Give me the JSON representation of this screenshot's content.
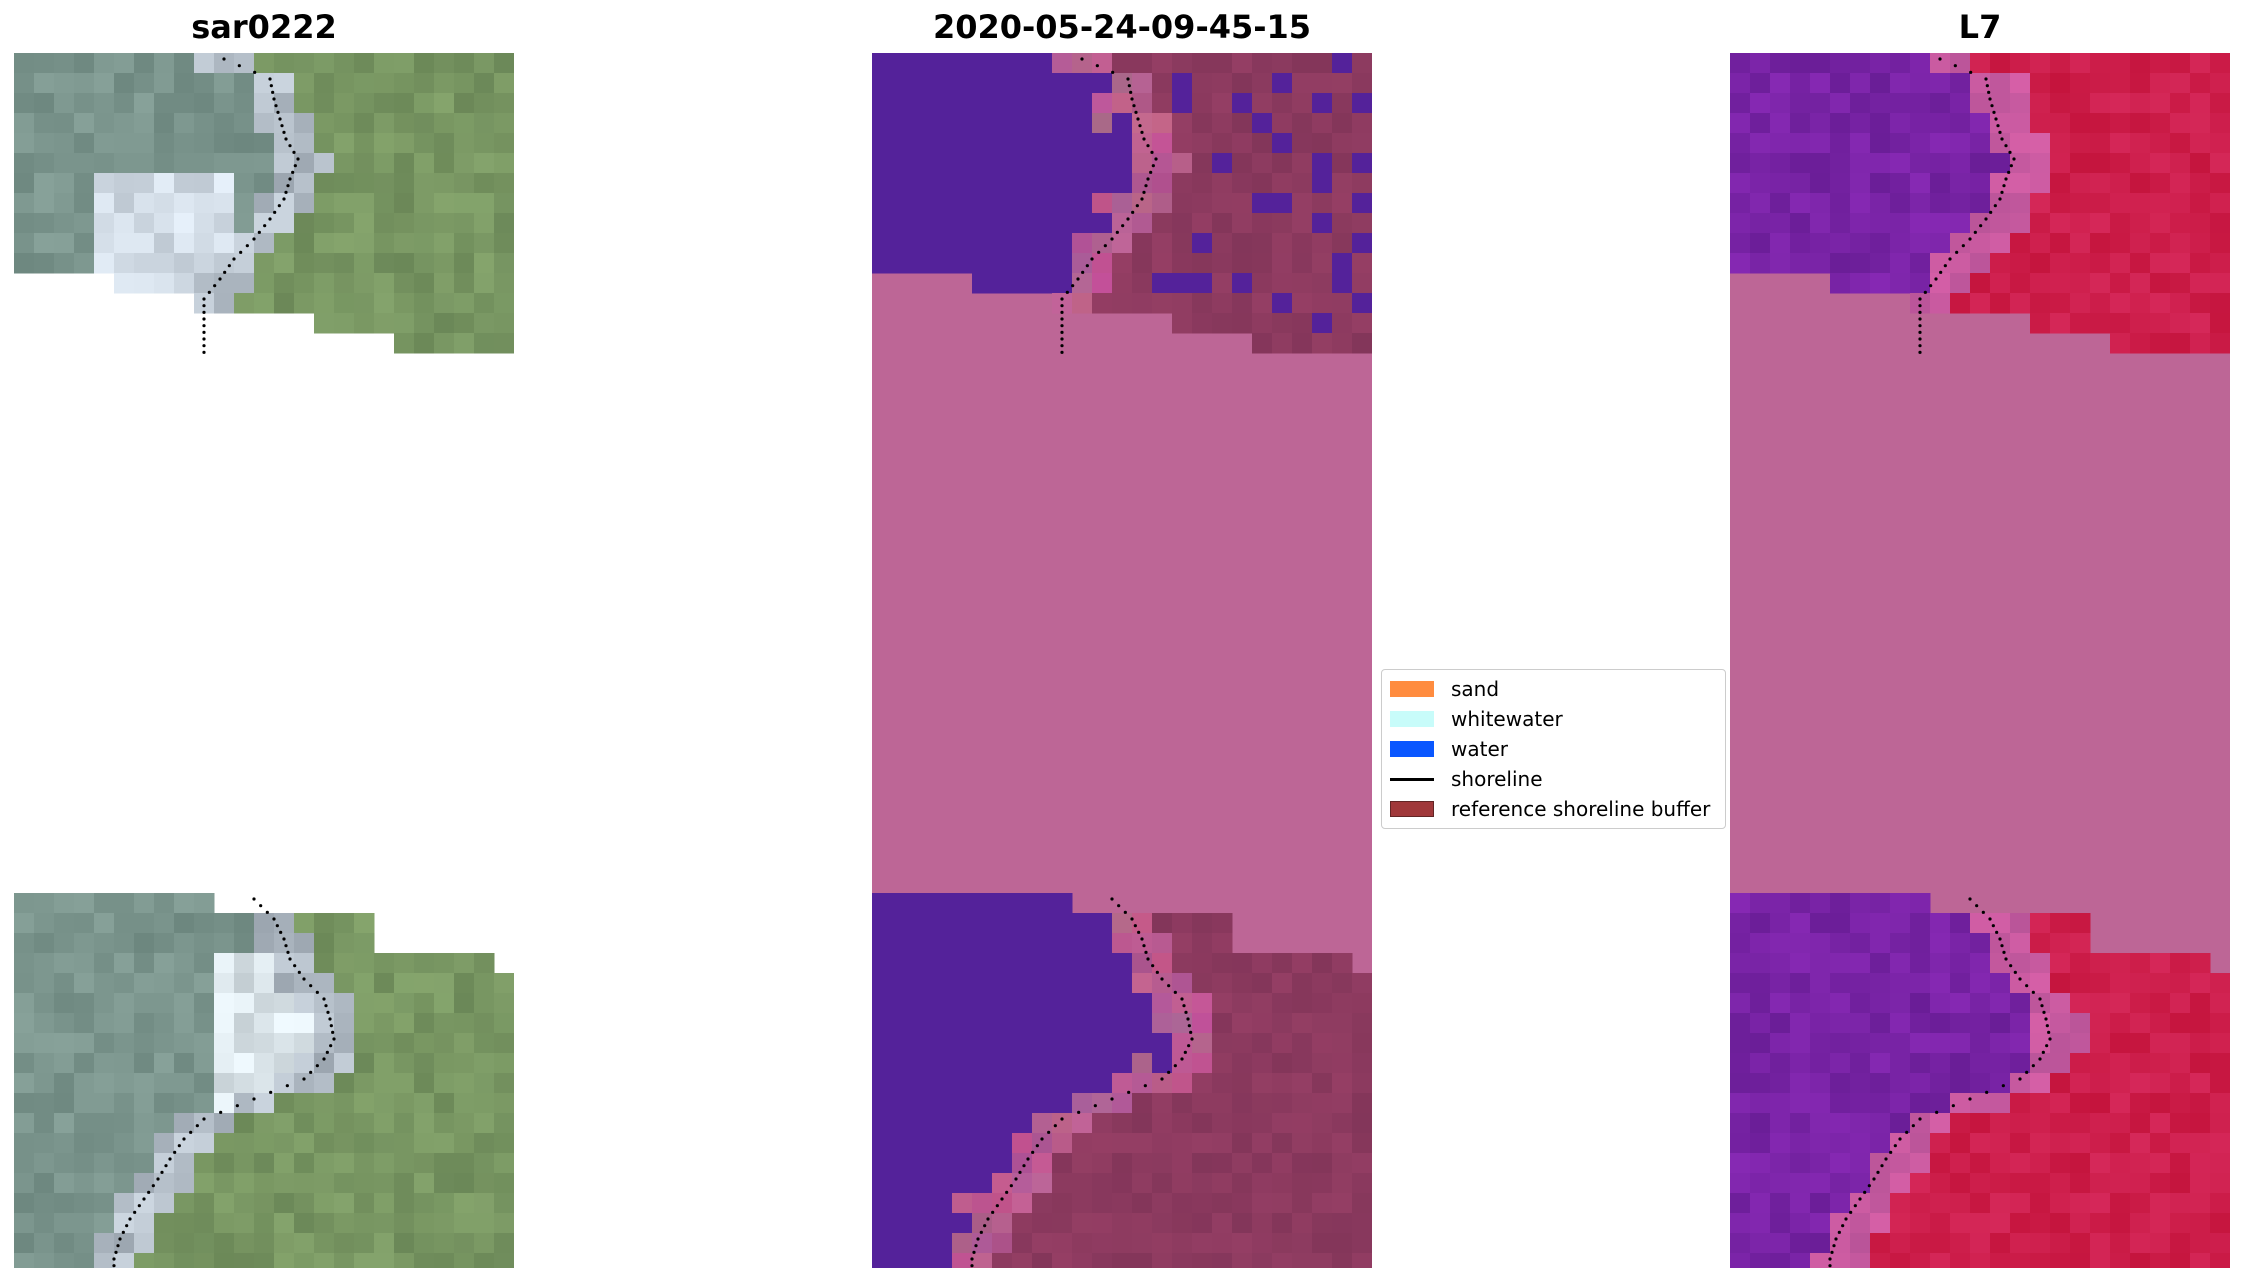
{
  "panels": [
    {
      "title": "sar0222",
      "kind": "rgb"
    },
    {
      "title": "2020-05-24-09-45-15",
      "kind": "classified"
    },
    {
      "title": "L7",
      "kind": "index"
    }
  ],
  "legend": {
    "items": [
      {
        "label": "sand",
        "color": "#ff8c3f",
        "type": "patch"
      },
      {
        "label": "whitewater",
        "color": "#c8fcfa",
        "type": "patch"
      },
      {
        "label": "water",
        "color": "#0a57ff",
        "type": "patch"
      },
      {
        "label": "shoreline",
        "color": "#000000",
        "type": "line"
      },
      {
        "label": "reference shoreline buffer",
        "color": "#9b2e30",
        "type": "patch"
      }
    ]
  },
  "colors": {
    "buffer_fill": "#bd6696",
    "water_class": "#54229a",
    "land_class": "#8c3a5e",
    "shoreline_dots": "#000000"
  }
}
